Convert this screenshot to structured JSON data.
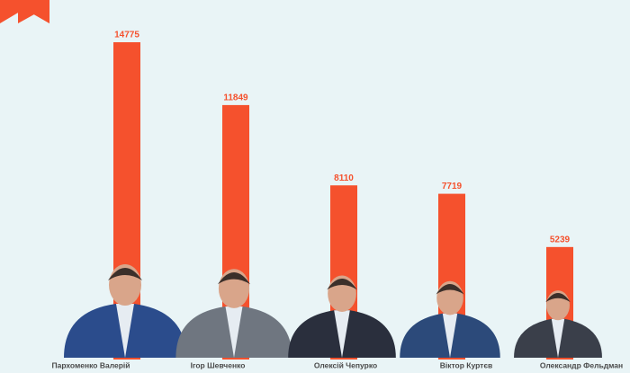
{
  "chart_data": {
    "type": "bar",
    "categories": [
      "Пархоменко Валерій",
      "Ігор Шевченко",
      "Олексій Чепурко",
      "Віктор Куртєв",
      "Олександр Фельдман"
    ],
    "values": [
      14775,
      11849,
      8110,
      7719,
      5239
    ],
    "color": "#f5512d"
  }
}
